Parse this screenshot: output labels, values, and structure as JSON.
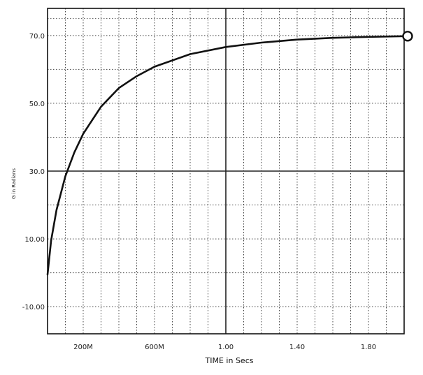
{
  "chart_data": {
    "type": "line",
    "title": "",
    "xlabel": "TIME in Secs",
    "ylabel": "G in Radians",
    "xlim": [
      0.0,
      2.0
    ],
    "ylim": [
      -18,
      78
    ],
    "x_ticks": [
      {
        "value": 0.2,
        "label": "200M"
      },
      {
        "value": 0.6,
        "label": "600M"
      },
      {
        "value": 1.0,
        "label": "1.00"
      },
      {
        "value": 1.4,
        "label": "1.40"
      },
      {
        "value": 1.8,
        "label": "1.80"
      }
    ],
    "y_ticks": [
      {
        "value": 70,
        "label": "70.0"
      },
      {
        "value": 50,
        "label": "50.0"
      },
      {
        "value": 30,
        "label": "30.0"
      },
      {
        "value": 10,
        "label": "10.00"
      },
      {
        "value": -10,
        "label": "-10.00"
      }
    ],
    "grid": true,
    "series": [
      {
        "color": "#111111",
        "x": [
          0.0,
          0.02,
          0.05,
          0.1,
          0.15,
          0.2,
          0.3,
          0.4,
          0.5,
          0.6,
          0.8,
          1.0,
          1.2,
          1.4,
          1.6,
          1.8,
          2.0
        ],
        "y": [
          -0.5,
          9.5,
          18.5,
          28.5,
          35.5,
          41.0,
          49.0,
          54.5,
          58.0,
          60.8,
          64.5,
          66.6,
          67.9,
          68.8,
          69.3,
          69.6,
          69.8
        ]
      }
    ],
    "end_marker": {
      "x": 2.0,
      "y": 69.8
    }
  }
}
